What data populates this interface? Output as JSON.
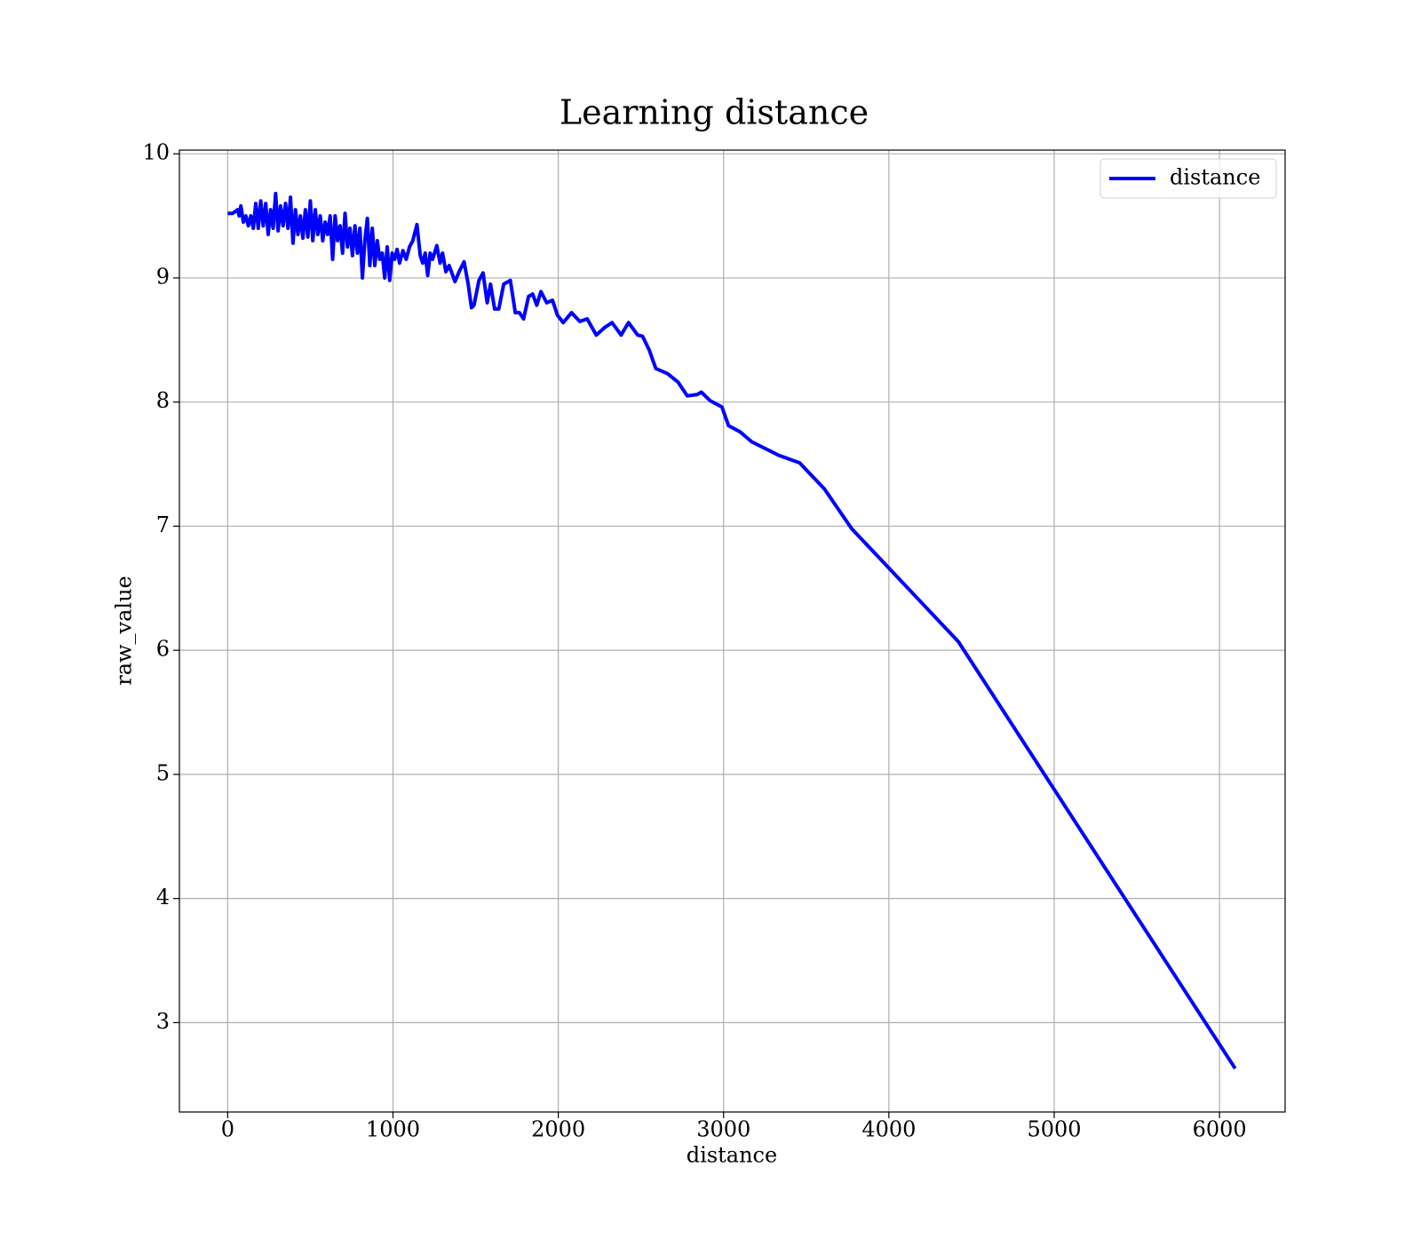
{
  "chart_data": {
    "type": "line",
    "title": "Learning distance",
    "x_label": "distance",
    "y_label": "raw_value",
    "x": [
      0,
      30,
      60,
      70,
      80,
      95,
      110,
      125,
      140,
      155,
      170,
      185,
      200,
      215,
      230,
      245,
      260,
      275,
      290,
      305,
      320,
      335,
      350,
      365,
      380,
      395,
      410,
      425,
      440,
      455,
      470,
      485,
      500,
      515,
      530,
      545,
      560,
      575,
      590,
      605,
      620,
      635,
      650,
      665,
      680,
      695,
      710,
      725,
      740,
      755,
      770,
      785,
      800,
      815,
      830,
      845,
      860,
      875,
      890,
      905,
      920,
      935,
      950,
      965,
      980,
      995,
      1010,
      1025,
      1040,
      1060,
      1080,
      1100,
      1120,
      1145,
      1165,
      1180,
      1195,
      1210,
      1225,
      1240,
      1265,
      1285,
      1300,
      1320,
      1340,
      1375,
      1400,
      1430,
      1455,
      1475,
      1490,
      1520,
      1545,
      1570,
      1590,
      1615,
      1640,
      1670,
      1710,
      1740,
      1765,
      1790,
      1820,
      1845,
      1870,
      1895,
      1930,
      1965,
      1995,
      2030,
      2080,
      2130,
      2175,
      2230,
      2280,
      2325,
      2380,
      2425,
      2480,
      2510,
      2550,
      2590,
      2660,
      2725,
      2780,
      2840,
      2865,
      2920,
      2990,
      3030,
      3100,
      3170,
      3335,
      3460,
      3610,
      3775,
      4420,
      6095
    ],
    "series": [
      {
        "name": "distance",
        "color": "#0000ff",
        "values": [
          9.52,
          9.52,
          9.55,
          9.5,
          9.58,
          9.45,
          9.5,
          9.42,
          9.5,
          9.4,
          9.6,
          9.4,
          9.62,
          9.42,
          9.6,
          9.35,
          9.55,
          9.4,
          9.68,
          9.38,
          9.58,
          9.42,
          9.6,
          9.4,
          9.65,
          9.28,
          9.55,
          9.35,
          9.5,
          9.32,
          9.55,
          9.33,
          9.62,
          9.3,
          9.55,
          9.35,
          9.5,
          9.3,
          9.45,
          9.35,
          9.5,
          9.15,
          9.5,
          9.3,
          9.42,
          9.2,
          9.52,
          9.25,
          9.4,
          9.18,
          9.42,
          9.2,
          9.4,
          9.0,
          9.3,
          9.48,
          9.1,
          9.4,
          9.1,
          9.3,
          9.15,
          9.2,
          9.0,
          9.25,
          8.98,
          9.2,
          9.15,
          9.23,
          9.12,
          9.22,
          9.15,
          9.25,
          9.3,
          9.43,
          9.18,
          9.12,
          9.2,
          9.02,
          9.2,
          9.15,
          9.26,
          9.12,
          9.2,
          9.05,
          9.1,
          8.97,
          9.05,
          9.13,
          8.95,
          8.76,
          8.78,
          8.98,
          9.04,
          8.8,
          8.95,
          8.75,
          8.75,
          8.95,
          8.98,
          8.72,
          8.72,
          8.67,
          8.85,
          8.87,
          8.78,
          8.89,
          8.8,
          8.82,
          8.7,
          8.64,
          8.72,
          8.65,
          8.67,
          8.54,
          8.6,
          8.64,
          8.54,
          8.64,
          8.54,
          8.53,
          8.42,
          8.27,
          8.23,
          8.16,
          8.05,
          8.06,
          8.08,
          8.01,
          7.96,
          7.81,
          7.76,
          7.68,
          7.57,
          7.51,
          7.3,
          6.98,
          6.07,
          2.63
        ]
      }
    ],
    "xlim": [
      -292,
      6397
    ],
    "ylim": [
      2.28,
      10.03
    ],
    "xticks": [
      0,
      1000,
      2000,
      3000,
      4000,
      5000,
      6000
    ],
    "yticks": [
      3,
      4,
      5,
      6,
      7,
      8,
      9,
      10
    ],
    "grid": true,
    "legend": "upper right"
  }
}
